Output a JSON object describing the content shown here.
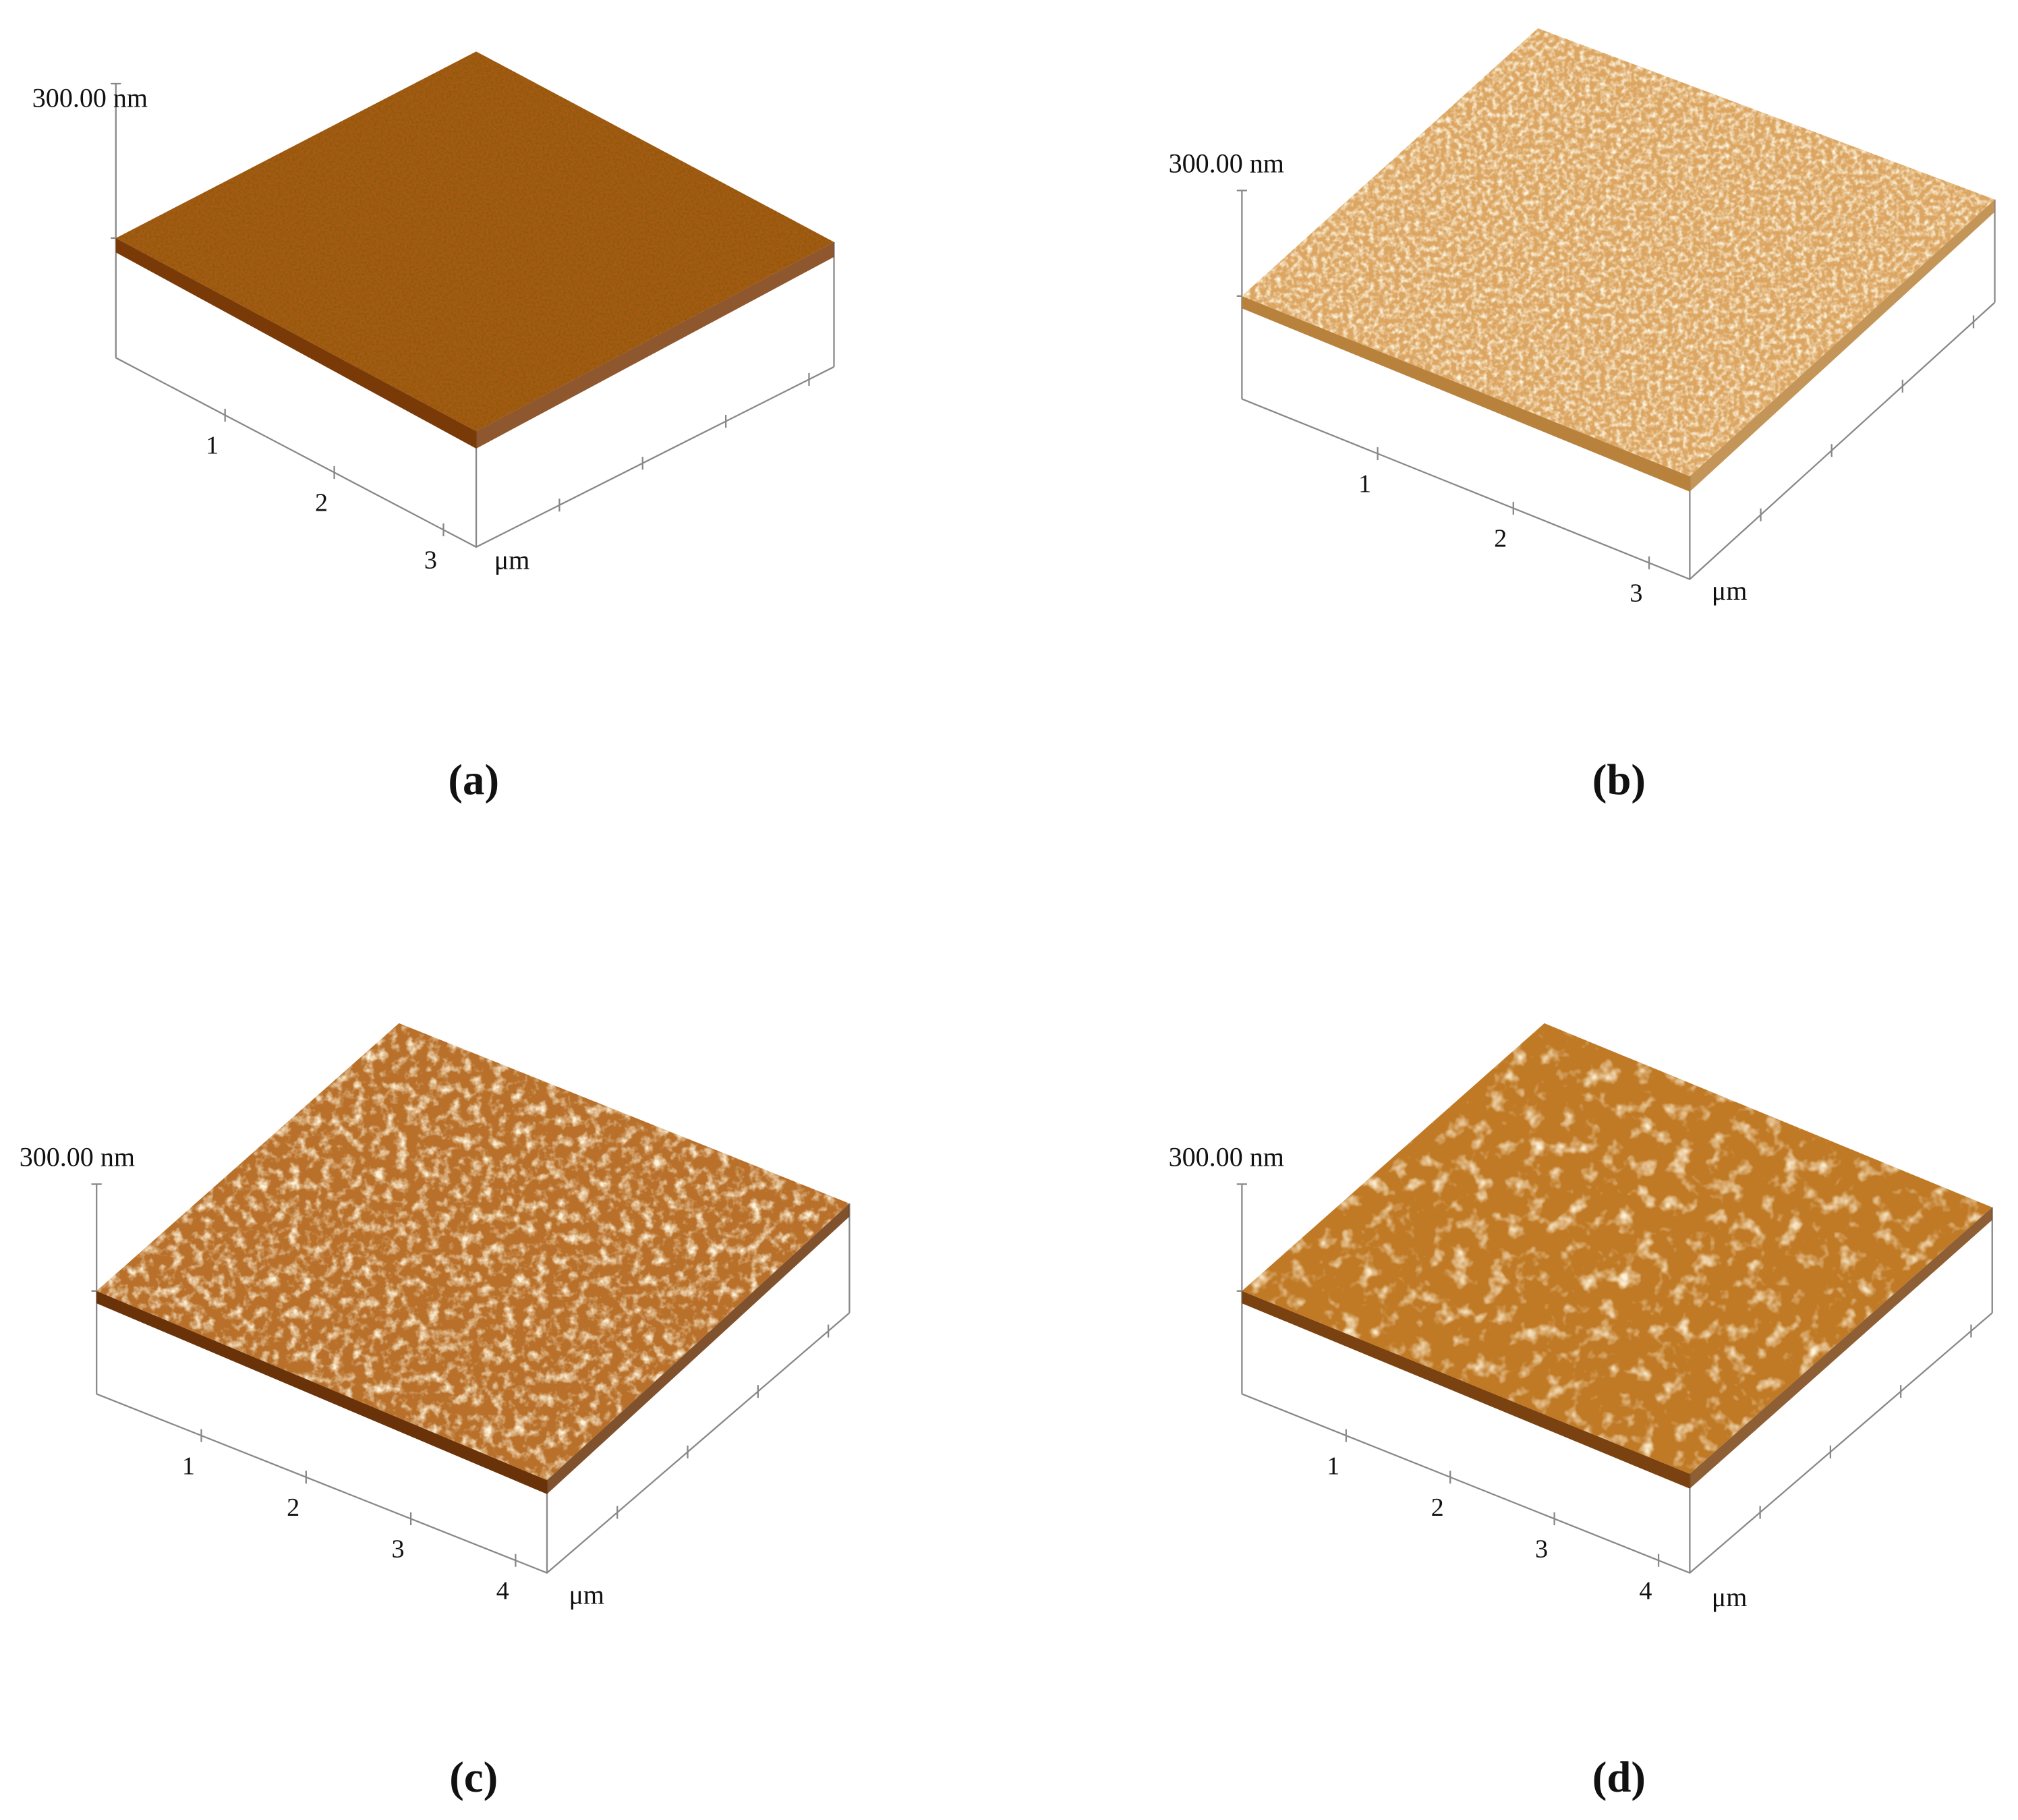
{
  "panels": [
    {
      "z_label": "300.00 nm",
      "ticks": [
        1,
        2,
        3
      ],
      "unit": "μm",
      "caption": "(a)"
    },
    {
      "z_label": "300.00 nm",
      "ticks": [
        1,
        2,
        3
      ],
      "unit": "μm",
      "caption": "(b)"
    },
    {
      "z_label": "300.00 nm",
      "ticks": [
        1,
        2,
        3,
        4
      ],
      "unit": "μm",
      "caption": "(c)"
    },
    {
      "z_label": "300.00 nm",
      "ticks": [
        1,
        2,
        3,
        4
      ],
      "unit": "μm",
      "caption": "(d)"
    }
  ]
}
